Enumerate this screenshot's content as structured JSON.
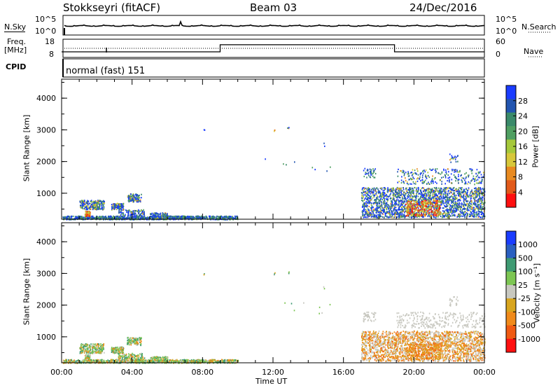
{
  "header": {
    "station": "Stokkseyri (fitACF)",
    "beam": "Beam 03",
    "date": "24/Dec/2016"
  },
  "colors": {
    "power_scale": [
      "#1a3cff",
      "#2255b0",
      "#3a8a6a",
      "#4f9f62",
      "#a5c83a",
      "#d7c73a",
      "#e88a20",
      "#e25a1a",
      "#ff1010"
    ],
    "velocity_scale": [
      "#1a3cff",
      "#2a5fc0",
      "#3e9a72",
      "#7dc653",
      "#c8c8c0",
      "#d8a51e",
      "#f08a1a",
      "#f05a12",
      "#ff1010"
    ]
  },
  "chart_data": [
    {
      "type": "line",
      "name": "nsky_nsearch",
      "left_label": "N.Sky",
      "right_label": "N.Search",
      "left_ticks": [
        "10^5",
        "10^0"
      ],
      "right_ticks": [
        "10^5",
        "10^0"
      ]
    },
    {
      "type": "line",
      "name": "freq_nave",
      "left_label_top": "Freq.",
      "left_label_bottom": "[MHz]",
      "right_label": "Nave",
      "cpid_label": "CPID",
      "left_ticks": [
        "18",
        "8"
      ],
      "right_ticks": [
        "60",
        "0"
      ],
      "cpid_text": "normal (fast) 151",
      "nave_steps": [
        [
          0,
          0.09
        ],
        [
          9.0,
          0.09
        ],
        [
          9.0,
          0.55
        ],
        [
          18.9,
          0.55
        ],
        [
          18.9,
          0.09
        ],
        [
          24,
          0.09
        ]
      ]
    },
    {
      "type": "heatmap",
      "name": "power",
      "xlabel": "",
      "ylabel": "Slant Range [km]",
      "ylim": [
        180,
        4600
      ],
      "yticks": [
        "1000",
        "2000",
        "3000",
        "4000"
      ],
      "colorbar_label": "Power [dB]",
      "colorbar_ticks": [
        "28",
        "24",
        "20",
        "16",
        "12",
        "8",
        "4"
      ]
    },
    {
      "type": "heatmap",
      "name": "velocity",
      "xlabel": "Time UT",
      "ylabel": "Slant Range [km]",
      "ylim": [
        180,
        4600
      ],
      "xticks": [
        "00:00",
        "04:00",
        "08:00",
        "12:00",
        "16:00",
        "20:00",
        "00:00"
      ],
      "yticks": [
        "1000",
        "2000",
        "3000",
        "4000"
      ],
      "colorbar_label": "Velocity [m s⁻¹]",
      "colorbar_ticks": [
        "1000",
        "500",
        "100",
        "25",
        "-25",
        "-100",
        "-500",
        "-1000"
      ]
    }
  ]
}
